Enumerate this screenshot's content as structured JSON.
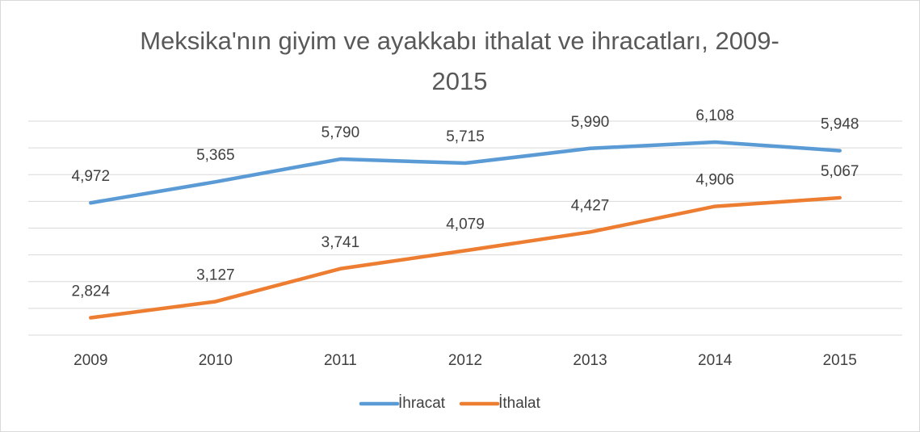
{
  "chart_data": {
    "type": "line",
    "title": "Meksika'nın giyim ve ayakkabı ithalat ve ihracatları, 2009-2015",
    "categories": [
      "2009",
      "2010",
      "2011",
      "2012",
      "2013",
      "2014",
      "2015"
    ],
    "series": [
      {
        "name": "İhracat",
        "color": "#5b9bd5",
        "values": [
          4972,
          5365,
          5790,
          5715,
          5990,
          6108,
          5948
        ],
        "value_labels": [
          "4,972",
          "5,365",
          "5,790",
          "5,715",
          "5,990",
          "6,108",
          "5,948"
        ]
      },
      {
        "name": "İthalat",
        "color": "#ed7d31",
        "values": [
          2824,
          3127,
          3741,
          4079,
          4427,
          4906,
          5067
        ],
        "value_labels": [
          "2,824",
          "3,127",
          "3,741",
          "4,079",
          "4,427",
          "4,906",
          "5,067"
        ]
      }
    ],
    "ylim": [
      2500,
      6500
    ],
    "yticks": [
      2500,
      3000,
      3500,
      4000,
      4500,
      5000,
      5500,
      6000,
      6500
    ],
    "grid": true,
    "legend": "bottom"
  }
}
